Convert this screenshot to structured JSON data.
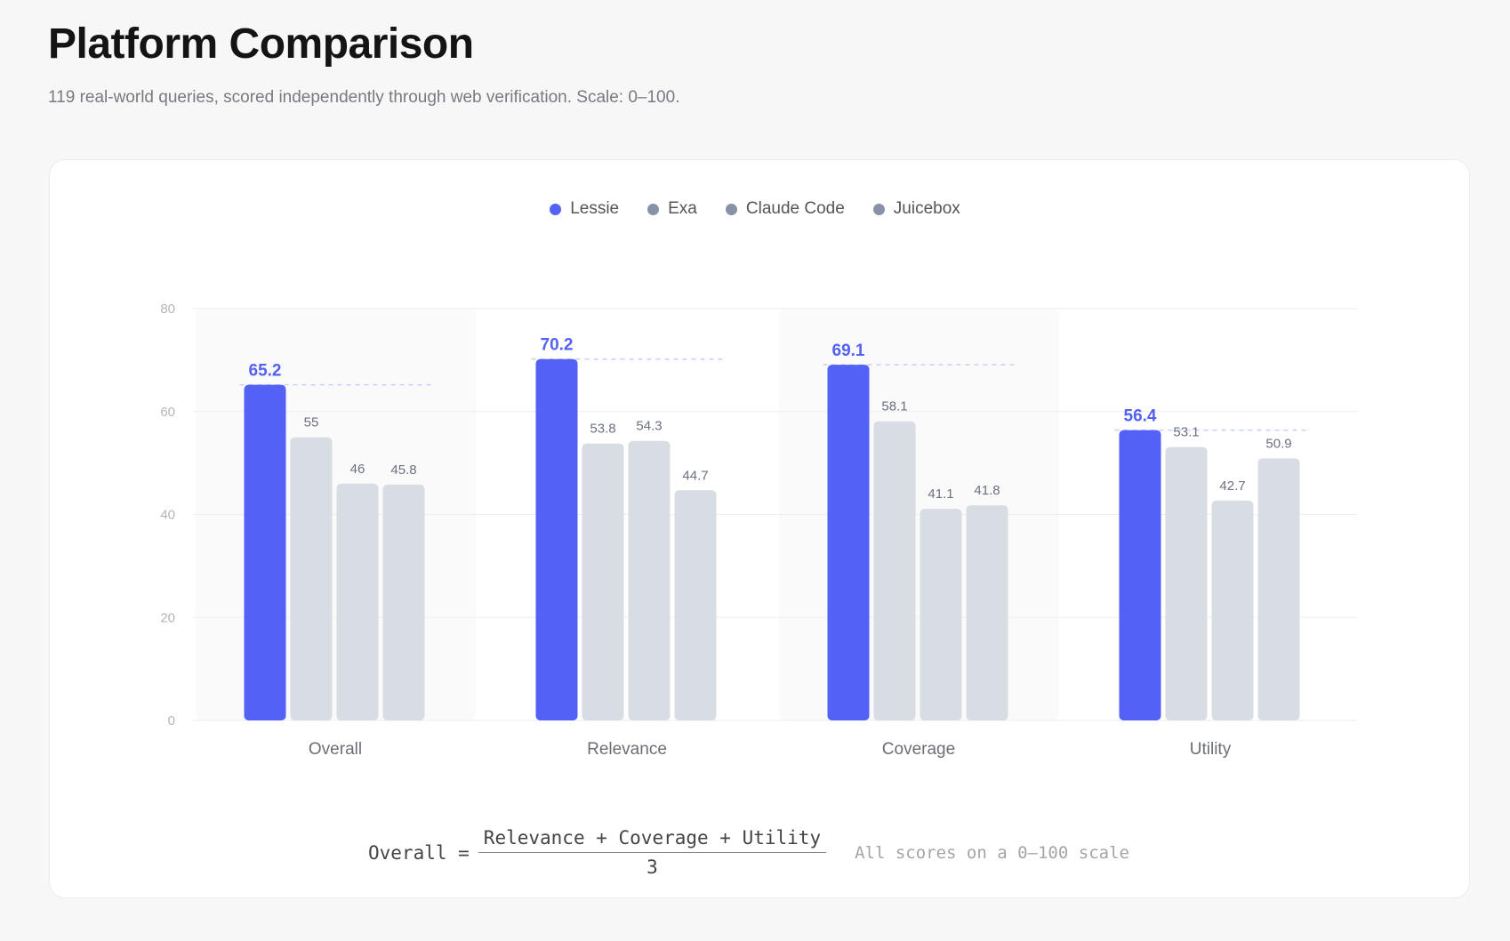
{
  "header": {
    "title": "Platform Comparison",
    "subtitle": "119 real-world queries, scored independently through web verification. Scale: 0–100."
  },
  "legend": [
    {
      "label": "Lessie",
      "color": "#5461f5"
    },
    {
      "label": "Exa",
      "color": "#8792a8"
    },
    {
      "label": "Claude Code",
      "color": "#8792a8"
    },
    {
      "label": "Juicebox",
      "color": "#8792a8"
    }
  ],
  "chart_data": {
    "type": "bar",
    "categories": [
      "Overall",
      "Relevance",
      "Coverage",
      "Utility"
    ],
    "series": [
      {
        "name": "Lessie",
        "values": [
          65.2,
          70.2,
          69.1,
          56.4
        ],
        "color": "#5461f5"
      },
      {
        "name": "Exa",
        "values": [
          55,
          53.8,
          58.1,
          53.1
        ],
        "color": "#d8dce3"
      },
      {
        "name": "Claude Code",
        "values": [
          46,
          54.3,
          41.1,
          42.7
        ],
        "color": "#d8dce3"
      },
      {
        "name": "Juicebox",
        "values": [
          45.8,
          44.7,
          41.8,
          50.9
        ],
        "color": "#d8dce3"
      }
    ],
    "yticks": [
      "0",
      "20",
      "40",
      "60",
      "80"
    ],
    "ylim": [
      0,
      80
    ],
    "grid": true,
    "legend_position": "top-center",
    "highlight_color": "#5461f5"
  },
  "formula": {
    "lhs": "Overall =",
    "numerator": "Relevance + Coverage + Utility",
    "denominator": "3",
    "note": "All scores on a 0–100 scale"
  }
}
